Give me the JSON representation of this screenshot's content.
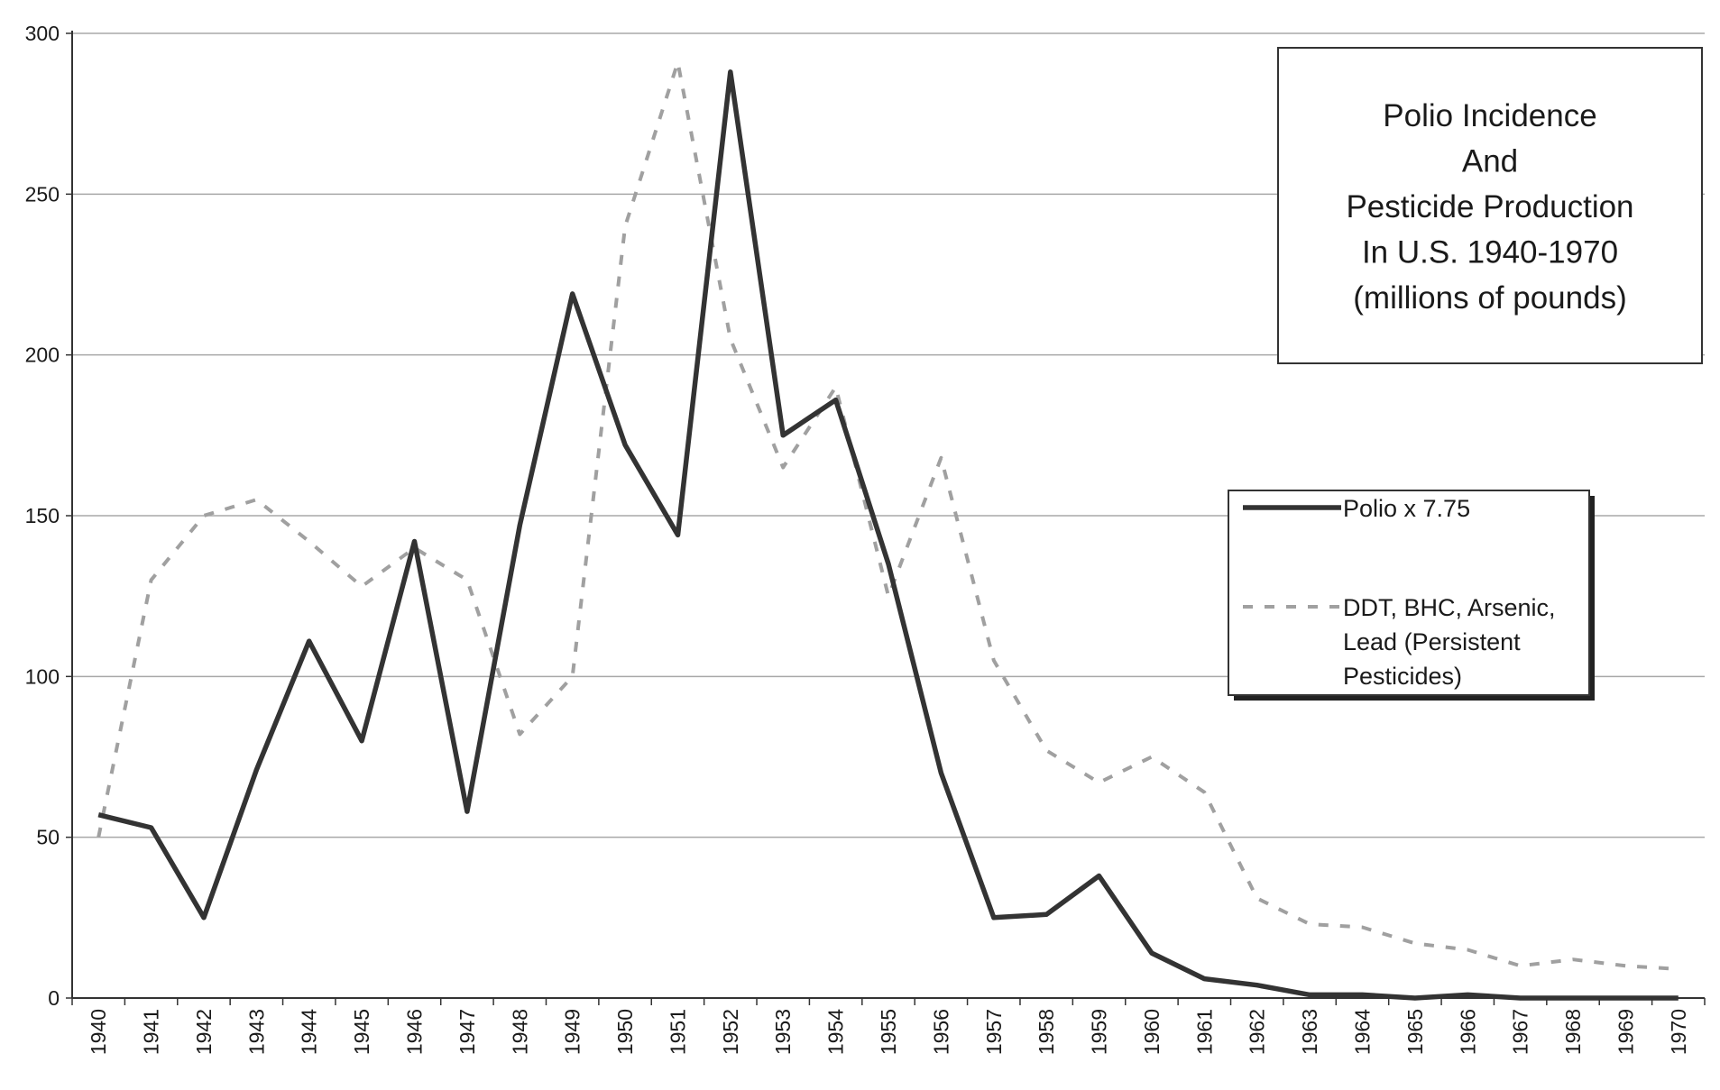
{
  "chart_data": {
    "type": "line",
    "title_lines": [
      "Polio Incidence",
      "And",
      "Pesticide Production",
      "In U.S. 1940-1970",
      "(millions of pounds)"
    ],
    "x": [
      1940,
      1941,
      1942,
      1943,
      1944,
      1945,
      1946,
      1947,
      1948,
      1949,
      1950,
      1951,
      1952,
      1953,
      1954,
      1955,
      1956,
      1957,
      1958,
      1959,
      1960,
      1961,
      1962,
      1963,
      1964,
      1965,
      1966,
      1967,
      1968,
      1969,
      1970
    ],
    "x_tick_labels": [
      "1940",
      "1941",
      "1942",
      "1943",
      "1944",
      "1945",
      "1946",
      "1947",
      "1948",
      "1949",
      "1950",
      "1951",
      "1952",
      "1953",
      "1954",
      "1955",
      "1956",
      "1957",
      "1958",
      "1959",
      "1960",
      "1961",
      "1962",
      "1963",
      "1964",
      "1965",
      "1966",
      "1967",
      "1968",
      "1969",
      "1970"
    ],
    "y_ticks": [
      0,
      50,
      100,
      150,
      200,
      250,
      300
    ],
    "y_tick_labels": [
      "0",
      "50",
      "100",
      "150",
      "200",
      "250",
      "300"
    ],
    "ylim": [
      0,
      300
    ],
    "grid": "horizontal",
    "legend_position": "right",
    "series": [
      {
        "name": "Polio x 7.75",
        "style": "solid",
        "color": "#333333",
        "values": [
          57,
          53,
          25,
          71,
          111,
          80,
          142,
          58,
          147,
          219,
          172,
          144,
          288,
          175,
          186,
          135,
          70,
          25,
          26,
          38,
          14,
          6,
          4,
          1,
          1,
          0,
          1,
          0,
          0,
          0,
          0
        ]
      },
      {
        "name": "DDT, BHC, Arsenic, Lead (Persistent Pesticides)",
        "legend_lines": [
          "DDT, BHC, Arsenic,",
          "Lead (Persistent",
          "Pesticides)"
        ],
        "style": "dashed",
        "color": "#a0a0a0",
        "values": [
          50,
          130,
          150,
          155,
          142,
          128,
          140,
          130,
          82,
          100,
          240,
          291,
          205,
          165,
          190,
          125,
          168,
          105,
          77,
          67,
          75,
          64,
          31,
          23,
          22,
          17,
          15,
          10,
          12,
          10,
          9
        ]
      }
    ]
  }
}
